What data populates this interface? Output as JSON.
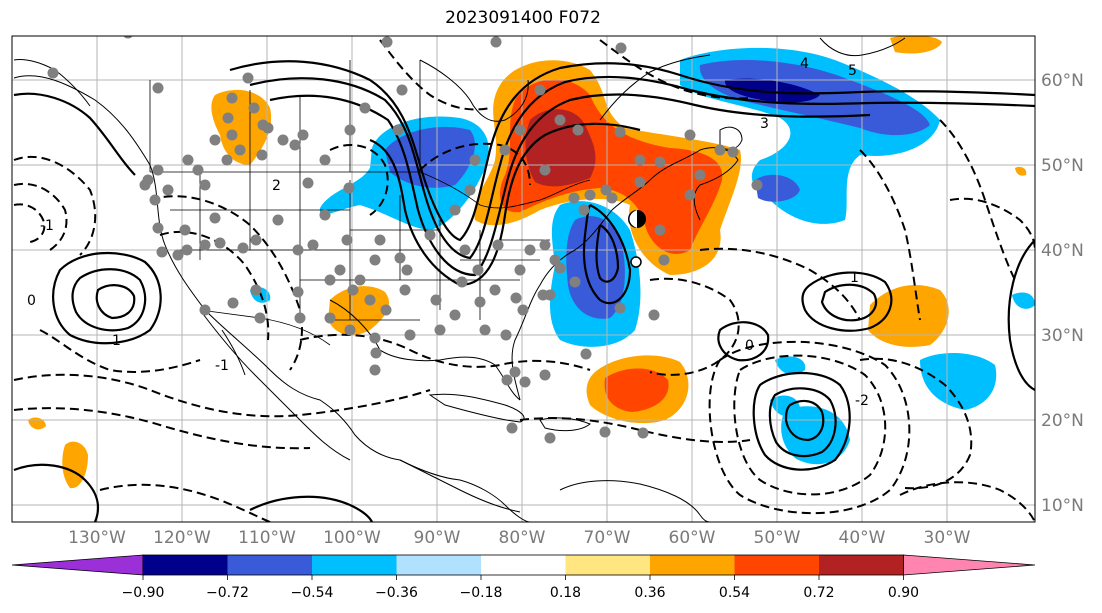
{
  "title": "2023091400 F072",
  "longitude_labels": [
    "130°W",
    "120°W",
    "110°W",
    "100°W",
    "90°W",
    "80°W",
    "70°W",
    "60°W",
    "50°W",
    "40°W",
    "30°W"
  ],
  "latitude_labels": [
    "10°N",
    "20°N",
    "30°N",
    "40°N",
    "50°N",
    "60°N"
  ],
  "colorbar": {
    "tick_labels": [
      "−0.90",
      "−0.72",
      "−0.54",
      "−0.36",
      "−0.18",
      "0.18",
      "0.36",
      "0.54",
      "0.72",
      "0.90"
    ],
    "colors": [
      "#9b30d9",
      "#00008b",
      "#3a5bd9",
      "#00bfff",
      "#b0e2ff",
      "#ffffff",
      "#ffe680",
      "#ffa500",
      "#ff4500",
      "#b22222",
      "#ff85b0"
    ]
  },
  "contour_labels": [
    "0",
    "1",
    "-1",
    "2",
    "-2",
    "3",
    "4",
    "5",
    "-1",
    "0",
    "1"
  ],
  "shading_colors": {
    "blue_light": "#00bfff",
    "blue_mid": "#3a5bd9",
    "blue_dark": "#00008b",
    "orange": "#ffa500",
    "red_orange": "#ff4500",
    "dark_red": "#b22222"
  },
  "station_marker_color": "#808080",
  "map_features": [
    "coastlines",
    "us-state-borders",
    "country-borders",
    "gridlines",
    "solid-contours",
    "dashed-contours",
    "station-dots",
    "storm-marker"
  ]
}
